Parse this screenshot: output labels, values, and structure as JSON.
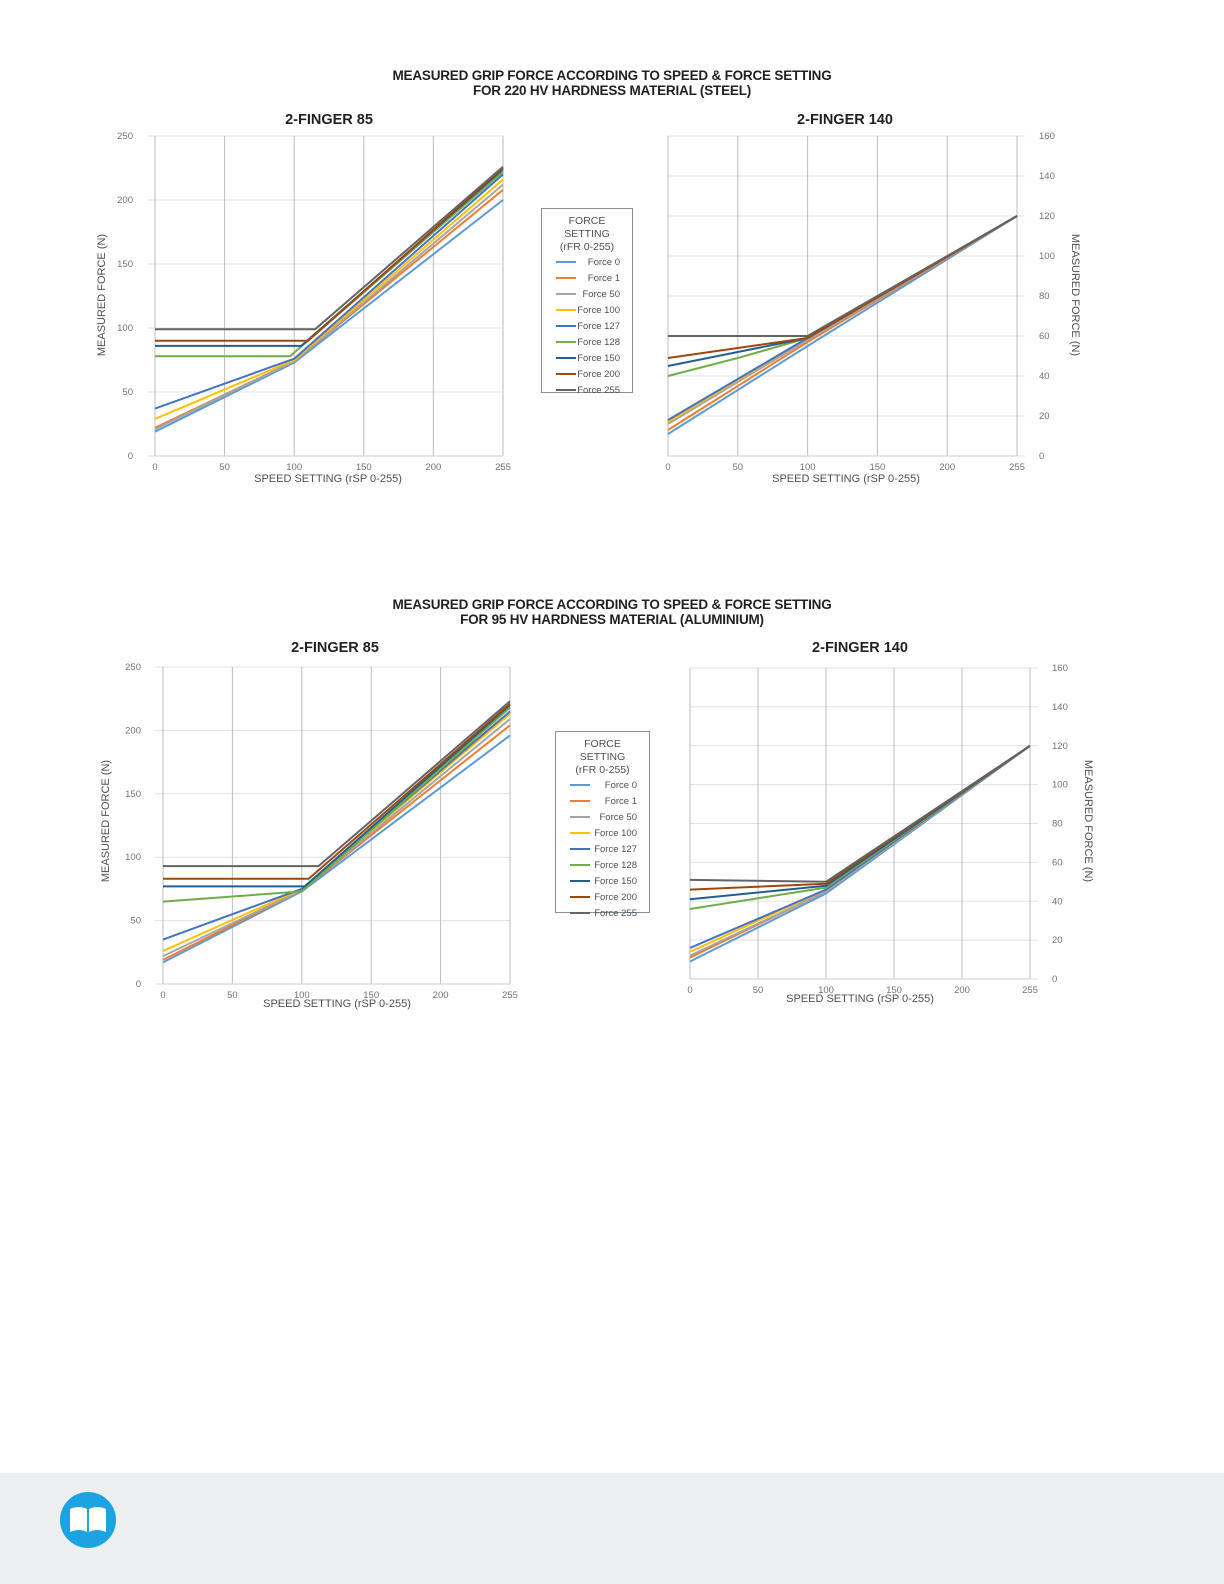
{
  "panels": [
    {
      "title": "MEASURED GRIP FORCE ACCORDING TO SPEED & FORCE SETTING",
      "subtitle": "FOR 220 HV HARDNESS MATERIAL (STEEL)",
      "legend": {
        "title": "FORCE SETTING",
        "subtitle": "(rFR 0-255)"
      }
    },
    {
      "title": "MEASURED GRIP FORCE ACCORDING TO SPEED & FORCE SETTING",
      "subtitle": "FOR 95 HV HARDNESS MATERIAL (ALUMINIUM)",
      "legend": {
        "title": "FORCE SETTING",
        "subtitle": "(rFR 0-255)"
      }
    }
  ],
  "series_colors": [
    "#5b9bd5",
    "#ed7d31",
    "#a5a5a5",
    "#ffc000",
    "#4472c4",
    "#70ad47",
    "#255e91",
    "#9e480e",
    "#636363"
  ],
  "footer": {
    "icon": "book-icon"
  },
  "chart_data": [
    {
      "type": "line",
      "title": "2-FINGER 85",
      "xlabel": "SPEED SETTING (rSP 0-255)",
      "ylabel": "MEASURED FORCE (N)",
      "x_ticks": [
        0,
        50,
        100,
        150,
        200,
        255
      ],
      "y_ticks": [
        0,
        50,
        100,
        150,
        200,
        250
      ],
      "ylim": [
        0,
        250
      ],
      "grid": true,
      "legend": "right",
      "series": [
        {
          "name": "Force 0",
          "points": [
            [
              0,
              19
            ],
            [
              100,
              73
            ],
            [
              255,
              200
            ]
          ]
        },
        {
          "name": "Force 1",
          "points": [
            [
              0,
              22
            ],
            [
              100,
              74
            ],
            [
              255,
              208
            ]
          ]
        },
        {
          "name": "Force 50",
          "points": [
            [
              0,
              21
            ],
            [
              100,
              74
            ],
            [
              255,
              212
            ]
          ]
        },
        {
          "name": "Force 100",
          "points": [
            [
              0,
              29
            ],
            [
              100,
              75
            ],
            [
              255,
              216
            ]
          ]
        },
        {
          "name": "Force 127",
          "points": [
            [
              0,
              37
            ],
            [
              100,
              76
            ],
            [
              255,
              220
            ]
          ]
        },
        {
          "name": "Force 128",
          "points": [
            [
              0,
              78
            ],
            [
              97,
              78
            ],
            [
              255,
              222
            ]
          ]
        },
        {
          "name": "Force 150",
          "points": [
            [
              0,
              86
            ],
            [
              105,
              86
            ],
            [
              255,
              224
            ]
          ]
        },
        {
          "name": "Force 200",
          "points": [
            [
              0,
              90
            ],
            [
              110,
              90
            ],
            [
              255,
              225
            ]
          ]
        },
        {
          "name": "Force 255",
          "points": [
            [
              0,
              99
            ],
            [
              115,
              99
            ],
            [
              255,
              226
            ]
          ]
        }
      ]
    },
    {
      "type": "line",
      "title": "2-FINGER 140",
      "xlabel": "SPEED SETTING (rSP 0-255)",
      "ylabel": "MEASURED FORCE (N)",
      "x_ticks": [
        0,
        50,
        100,
        150,
        200,
        255
      ],
      "y_ticks": [
        0,
        20,
        40,
        60,
        80,
        100,
        120,
        140,
        160
      ],
      "ylim": [
        0,
        160
      ],
      "grid": true,
      "yaxis_side": "right",
      "series": [
        {
          "name": "Force 0",
          "points": [
            [
              0,
              11
            ],
            [
              100,
              55
            ],
            [
              255,
              120
            ]
          ]
        },
        {
          "name": "Force 1",
          "points": [
            [
              0,
              13
            ],
            [
              100,
              57
            ],
            [
              255,
              120
            ]
          ]
        },
        {
          "name": "Force 50",
          "points": [
            [
              0,
              16
            ],
            [
              100,
              58
            ],
            [
              255,
              120
            ]
          ]
        },
        {
          "name": "Force 100",
          "points": [
            [
              0,
              17
            ],
            [
              100,
              59
            ],
            [
              255,
              120
            ]
          ]
        },
        {
          "name": "Force 127",
          "points": [
            [
              0,
              18
            ],
            [
              100,
              59
            ],
            [
              255,
              120
            ]
          ]
        },
        {
          "name": "Force 128",
          "points": [
            [
              0,
              40
            ],
            [
              50,
              49
            ],
            [
              100,
              59
            ],
            [
              255,
              120
            ]
          ]
        },
        {
          "name": "Force 150",
          "points": [
            [
              0,
              45
            ],
            [
              50,
              52
            ],
            [
              100,
              59
            ],
            [
              255,
              120
            ]
          ]
        },
        {
          "name": "Force 200",
          "points": [
            [
              0,
              49
            ],
            [
              50,
              54
            ],
            [
              100,
              59
            ],
            [
              255,
              120
            ]
          ]
        },
        {
          "name": "Force 255",
          "points": [
            [
              0,
              60
            ],
            [
              100,
              60
            ],
            [
              255,
              120
            ]
          ]
        }
      ]
    },
    {
      "type": "line",
      "title": "2-FINGER 85",
      "xlabel": "SPEED SETTING (rSP 0-255)",
      "ylabel": "MEASURED FORCE (N)",
      "x_ticks": [
        0,
        50,
        100,
        150,
        200,
        255
      ],
      "y_ticks": [
        0,
        50,
        100,
        150,
        200,
        250
      ],
      "ylim": [
        0,
        250
      ],
      "grid": true,
      "legend": "right",
      "series": [
        {
          "name": "Force 0",
          "points": [
            [
              0,
              17
            ],
            [
              100,
              73
            ],
            [
              255,
              196
            ]
          ]
        },
        {
          "name": "Force 1",
          "points": [
            [
              0,
              19
            ],
            [
              100,
              74
            ],
            [
              255,
              204
            ]
          ]
        },
        {
          "name": "Force 50",
          "points": [
            [
              0,
              22
            ],
            [
              100,
              74
            ],
            [
              255,
              209
            ]
          ]
        },
        {
          "name": "Force 100",
          "points": [
            [
              0,
              26
            ],
            [
              100,
              75
            ],
            [
              255,
              213
            ]
          ]
        },
        {
          "name": "Force 127",
          "points": [
            [
              0,
              35
            ],
            [
              100,
              75
            ],
            [
              255,
              215
            ]
          ]
        },
        {
          "name": "Force 128",
          "points": [
            [
              0,
              65
            ],
            [
              100,
              73
            ],
            [
              255,
              218
            ]
          ]
        },
        {
          "name": "Force 150",
          "points": [
            [
              0,
              77
            ],
            [
              102,
              77
            ],
            [
              255,
              220
            ]
          ]
        },
        {
          "name": "Force 200",
          "points": [
            [
              0,
              83
            ],
            [
              105,
              83
            ],
            [
              255,
              221
            ]
          ]
        },
        {
          "name": "Force 255",
          "points": [
            [
              0,
              93
            ],
            [
              112,
              93
            ],
            [
              255,
              223
            ]
          ]
        }
      ]
    },
    {
      "type": "line",
      "title": "2-FINGER 140",
      "xlabel": "SPEED SETTING (rSP 0-255)",
      "ylabel": "MEASURED FORCE (N)",
      "x_ticks": [
        0,
        50,
        100,
        150,
        200,
        255
      ],
      "y_ticks": [
        0,
        20,
        40,
        60,
        80,
        100,
        120,
        140,
        160
      ],
      "ylim": [
        0,
        160
      ],
      "grid": true,
      "yaxis_side": "right",
      "series": [
        {
          "name": "Force 0",
          "points": [
            [
              0,
              9
            ],
            [
              100,
              44
            ],
            [
              255,
              120
            ]
          ]
        },
        {
          "name": "Force 1",
          "points": [
            [
              0,
              11
            ],
            [
              100,
              45
            ],
            [
              255,
              120
            ]
          ]
        },
        {
          "name": "Force 50",
          "points": [
            [
              0,
              12
            ],
            [
              100,
              45
            ],
            [
              255,
              120
            ]
          ]
        },
        {
          "name": "Force 100",
          "points": [
            [
              0,
              14
            ],
            [
              100,
              46
            ],
            [
              255,
              120
            ]
          ]
        },
        {
          "name": "Force 127",
          "points": [
            [
              0,
              16
            ],
            [
              100,
              46
            ],
            [
              255,
              120
            ]
          ]
        },
        {
          "name": "Force 128",
          "points": [
            [
              0,
              36
            ],
            [
              100,
              47
            ],
            [
              255,
              120
            ]
          ]
        },
        {
          "name": "Force 150",
          "points": [
            [
              0,
              41
            ],
            [
              100,
              48
            ],
            [
              255,
              120
            ]
          ]
        },
        {
          "name": "Force 200",
          "points": [
            [
              0,
              46
            ],
            [
              100,
              49
            ],
            [
              255,
              120
            ]
          ]
        },
        {
          "name": "Force 255",
          "points": [
            [
              0,
              51
            ],
            [
              100,
              50
            ],
            [
              255,
              120
            ]
          ]
        }
      ]
    }
  ]
}
